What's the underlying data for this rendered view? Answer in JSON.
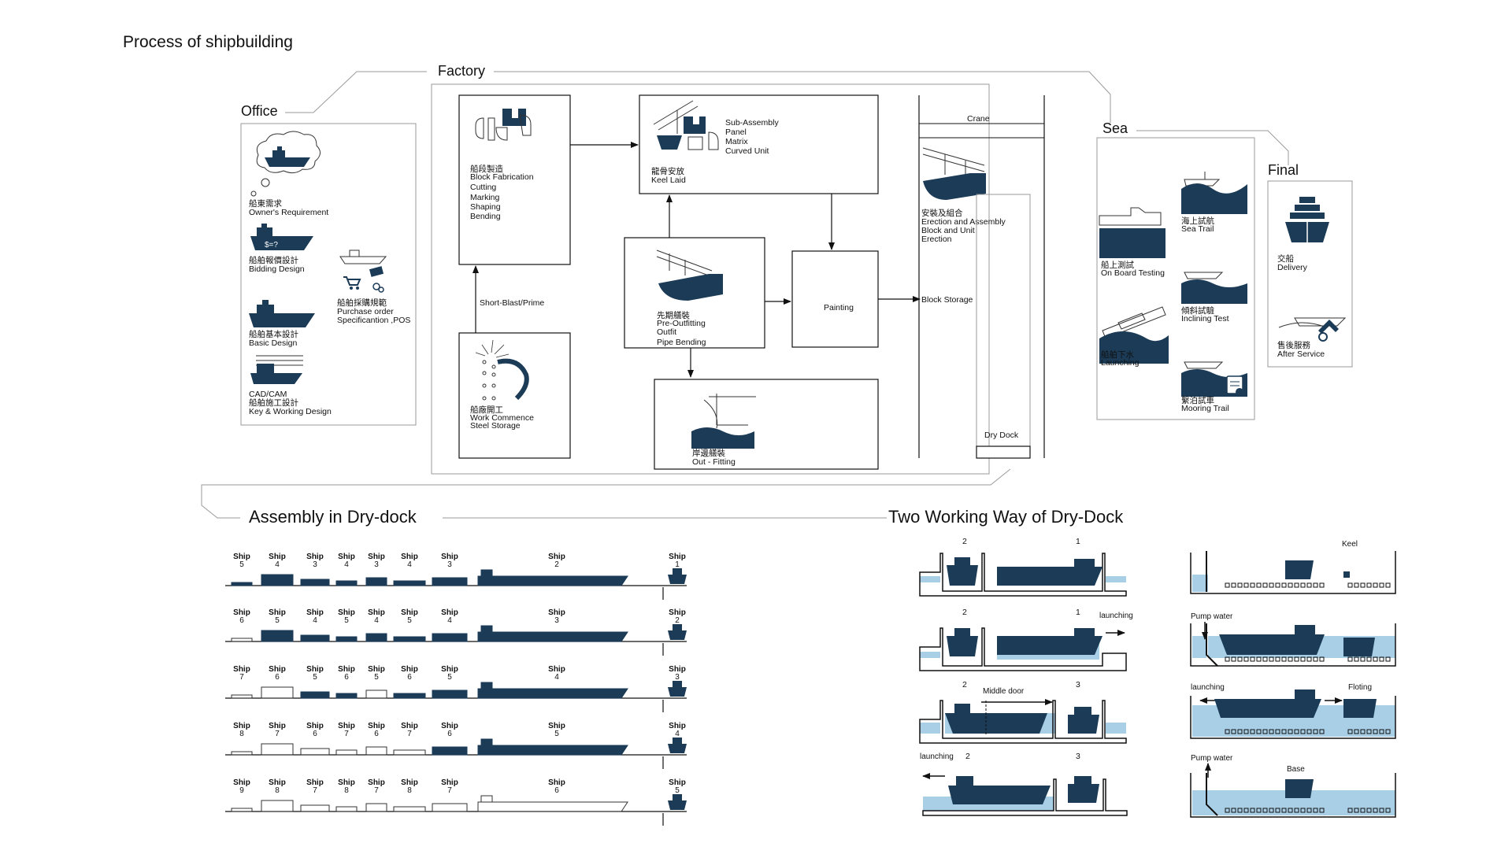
{
  "page_title": "Process of shipbuilding",
  "colors": {
    "navy": "#1b3b57",
    "water": "#a9cfe6",
    "line": "#9a9a9a",
    "dark": "#111111"
  },
  "office": {
    "label": "Office",
    "items": [
      {
        "zh": "船東需求",
        "en": "Owner's Requirement",
        "icon": "ship-thought-cloud-icon"
      },
      {
        "zh": "船舶報價設計",
        "en": "Bidding Design",
        "icon": "ship-price-icon",
        "badge": "$=?"
      },
      {
        "zh": "船舶基本設計",
        "en": "Basic Design",
        "icon": "ship-basic-design-icon"
      },
      {
        "cad": "CAD/CAM",
        "zh": "船舶施工設計",
        "en": "Key & Working Design",
        "icon": "ship-drawing-icon"
      }
    ],
    "purchase": {
      "zh": "船舶採購規範",
      "en1": "Purchase order",
      "en2": "Specificantion ,POS",
      "icon": "purchase-icon"
    }
  },
  "factory": {
    "label": "Factory",
    "block_fabrication": {
      "zh": "船段製造",
      "en": "Block Fabrication",
      "list": [
        "Cutting",
        "Marking",
        "Shaping",
        "Bending"
      ]
    },
    "sub_assembly": {
      "list": [
        "Sub-Assembly",
        "Panel",
        "Matrix",
        "Curved Unit"
      ],
      "zh": "龍骨安放",
      "en": "Keel Laid"
    },
    "short_blast": "Short-Blast/Prime",
    "work_commence": {
      "zh": "船廠開工",
      "en": "Work Commence",
      "en2": "Steel Storage"
    },
    "pre_outfitting": {
      "zh": "先期艤裝",
      "en": "Pre-Outfitting",
      "l1": "Outfit",
      "l2": "Pipe Bending"
    },
    "painting": "Painting",
    "out_fitting": {
      "zh": "岸邊艤裝",
      "en": "Out - Fitting"
    },
    "crane": "Crane",
    "erection": {
      "zh": "安裝及組合",
      "en": "Erection and Assembly",
      "l1": "Block and Unit",
      "l2": "Erection"
    },
    "block_storage": "Block Storage",
    "dry_dock": "Dry Dock"
  },
  "sea": {
    "label": "Sea",
    "items": [
      {
        "zh": "海上試航",
        "en": "Sea Trail"
      },
      {
        "zh": "船上測試",
        "en": "On Board Testing"
      },
      {
        "zh": "傾斜試驗",
        "en": "Inclining Test"
      },
      {
        "zh": "船舶下水",
        "en": "Launching"
      },
      {
        "zh": "繫泊試車",
        "en": "Mooring Trail"
      }
    ]
  },
  "final": {
    "label": "Final",
    "items": [
      {
        "zh": "交船",
        "en": "Delivery"
      },
      {
        "zh": "售後服務",
        "en": "After Service"
      }
    ]
  },
  "assembly": {
    "title": "Assembly in Dry-dock",
    "ship_word": "Ship",
    "rows": [
      [
        "5",
        "4",
        "3",
        "4",
        "3",
        "4",
        "3",
        "2",
        "1"
      ],
      [
        "6",
        "5",
        "4",
        "5",
        "4",
        "5",
        "4",
        "3",
        "2"
      ],
      [
        "7",
        "6",
        "5",
        "6",
        "5",
        "6",
        "5",
        "4",
        "3"
      ],
      [
        "8",
        "7",
        "6",
        "7",
        "6",
        "7",
        "6",
        "5",
        "4"
      ],
      [
        "9",
        "8",
        "7",
        "8",
        "7",
        "8",
        "7",
        "6",
        "5"
      ]
    ]
  },
  "two_way": {
    "title": "Two Working Way of Dry-Dock",
    "left": {
      "p1": {
        "a": "2",
        "b": "1"
      },
      "p2": {
        "a": "2",
        "b": "1",
        "note": "launching"
      },
      "p3": {
        "a": "2",
        "b": "3",
        "note": "Middle door"
      },
      "p4": {
        "a": "2",
        "b": "3",
        "note": "launching"
      }
    },
    "right": {
      "p1": {
        "note": "Keel"
      },
      "p2": {
        "note": "Pump water"
      },
      "p3": {
        "note1": "launching",
        "note2": "Floting"
      },
      "p4": {
        "note1": "Pump water",
        "note2": "Base"
      }
    }
  }
}
